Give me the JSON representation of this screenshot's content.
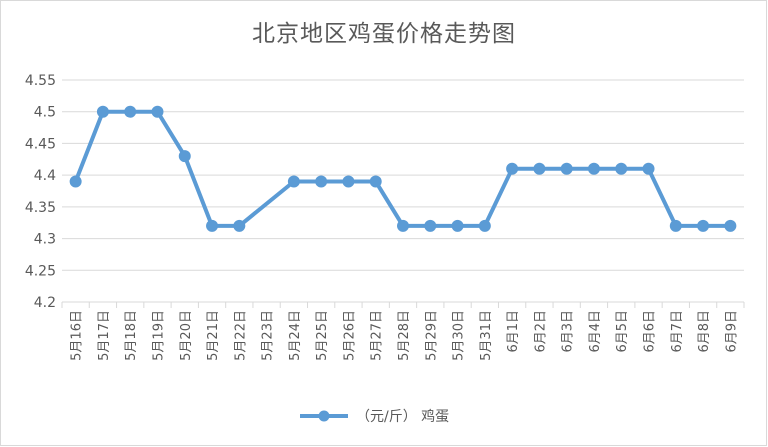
{
  "chart_data": {
    "type": "line",
    "title": "北京地区鸡蛋价格走势图",
    "categories": [
      "5月16日",
      "5月17日",
      "5月18日",
      "5月19日",
      "5月20日",
      "5月21日",
      "5月22日",
      "5月23日",
      "5月24日",
      "5月25日",
      "5月26日",
      "5月27日",
      "5月28日",
      "5月29日",
      "5月30日",
      "5月31日",
      "6月1日",
      "6月2日",
      "6月3日",
      "6月4日",
      "6月5日",
      "6月6日",
      "6月7日",
      "6月8日",
      "6月9日"
    ],
    "series": [
      {
        "name": "（元/斤） 鸡蛋",
        "color": "#5b9bd5",
        "values": [
          4.39,
          4.5,
          4.5,
          4.5,
          4.43,
          4.32,
          4.32,
          null,
          4.39,
          4.39,
          4.39,
          4.39,
          4.32,
          4.32,
          4.32,
          4.32,
          4.41,
          4.41,
          4.41,
          4.41,
          4.41,
          4.41,
          4.32,
          4.32,
          4.32
        ]
      }
    ],
    "ylim": [
      4.2,
      4.55
    ],
    "yticks": [
      "4.55",
      "4.5",
      "4.45",
      "4.4",
      "4.35",
      "4.3",
      "4.25",
      "4.2"
    ],
    "grid": true,
    "legend_position": "bottom"
  },
  "colors": {
    "gridline": "#d9d9d9",
    "text": "#595959",
    "series": "#5b9bd5"
  }
}
